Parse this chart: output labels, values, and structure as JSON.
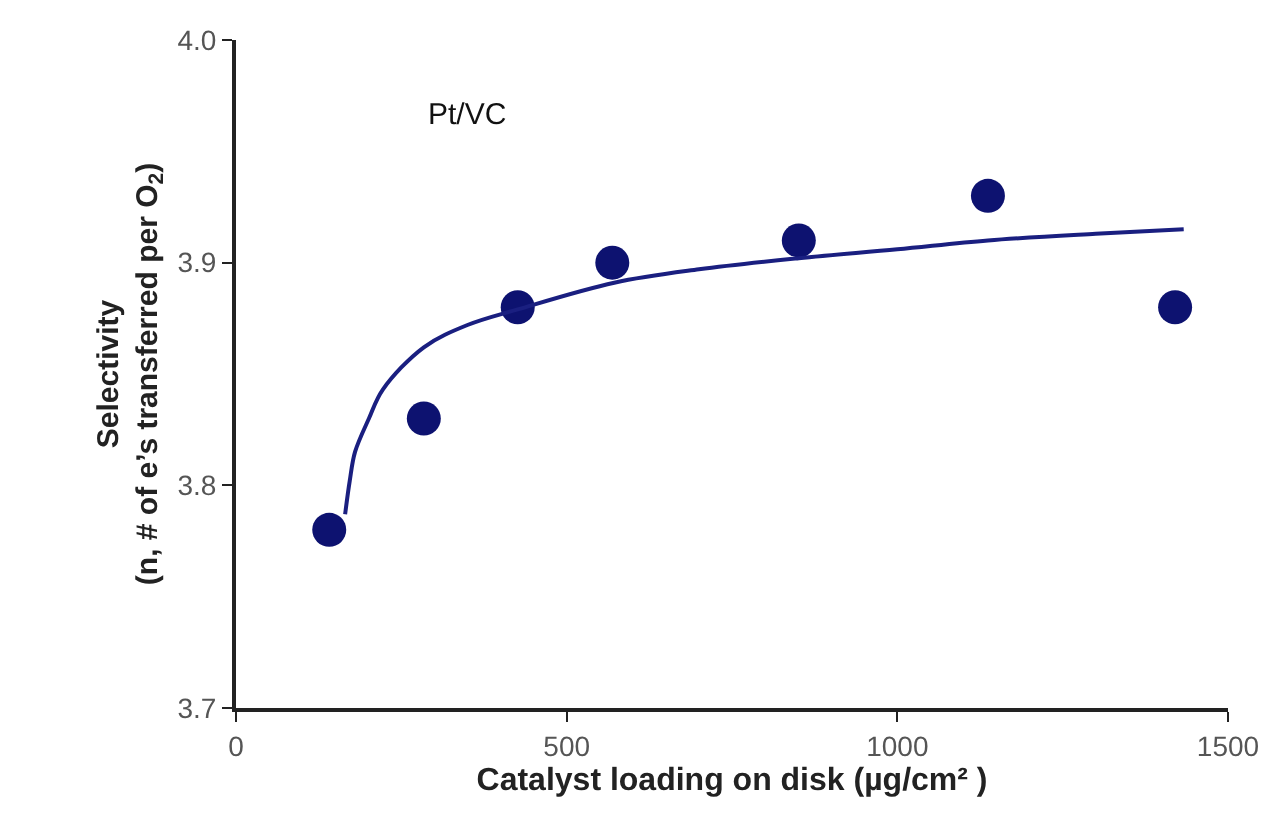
{
  "chart_data": {
    "type": "scatter",
    "xlabel": "Catalyst loading on disk (µg/cm² )",
    "ylabel": "Selectivity\n(n, # of e’s transferred per O$_{2}$)",
    "annotations": [
      "Pt/VC"
    ],
    "xlim": [
      0,
      1500
    ],
    "xticks": [
      0,
      500,
      1000,
      1500
    ],
    "ylim": [
      3.7,
      4.0
    ],
    "yticks": [
      3.7,
      3.8,
      3.9,
      {
        "value": 4,
        "label": "4.0"
      }
    ],
    "series": [
      {
        "marker": "circle",
        "color": "#0d1270",
        "x": [
          141,
          284,
          426,
          569,
          851,
          1137,
          1420
        ],
        "values": [
          3.78,
          3.83,
          3.88,
          3.9,
          3.91,
          3.93,
          3.88
        ]
      },
      {
        "type": "line",
        "color": "#1a1f80",
        "line_style": "solid",
        "x": [
          165,
          172,
          180,
          201,
          222,
          284,
          350,
          426,
          572,
          700,
          851,
          1000,
          1137,
          1300,
          1433
        ],
        "values": [
          3.787,
          3.802,
          3.815,
          3.83,
          3.843,
          3.862,
          3.872,
          3.879,
          3.891,
          3.897,
          3.902,
          3.906,
          3.91,
          3.913,
          3.915
        ]
      }
    ]
  }
}
